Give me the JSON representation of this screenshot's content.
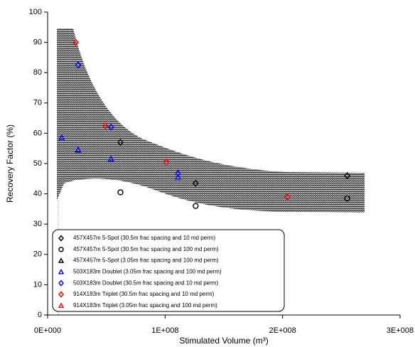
{
  "chart_data": {
    "type": "scatter",
    "x_label": "Stimulated Volume (m³)",
    "y_label": "Recovery Factor (%)",
    "xlim": [
      0,
      300000000
    ],
    "xticks": [
      {
        "value": 0,
        "label": "0E+000"
      },
      {
        "value": 100000000,
        "label": "1E+008"
      },
      {
        "value": 200000000,
        "label": "2E+008"
      },
      {
        "value": 300000000,
        "label": "3E+008"
      }
    ],
    "ylim": [
      0,
      100
    ],
    "yticks": [
      0,
      10,
      20,
      30,
      40,
      50,
      60,
      70,
      80,
      90,
      100
    ],
    "series": [
      {
        "name": "457X457m 5-Spot (30.5m frac spacing and 10 md perm)",
        "color": "#000000",
        "marker": "diamond",
        "x": [
          62000000,
          126000000,
          255000000
        ],
        "values": [
          57,
          43.5,
          46
        ]
      },
      {
        "name": "457X457m 5-Spot (30.5m frac spacing and 100 md perm)",
        "color": "#000000",
        "marker": "circle",
        "x": [
          62000000,
          126000000,
          255000000
        ],
        "values": [
          40.5,
          36,
          38.5
        ]
      },
      {
        "name": "457X457m 5-Spot (3.05m frac spacing and 100 md perm)",
        "color": "#000000",
        "marker": "triangle",
        "x": [],
        "values": []
      },
      {
        "name": "503X183m Doublet  (3.05m frac spacing and 100 md perm)",
        "color": "#0000ff",
        "marker": "triangle",
        "x": [
          12000000,
          26000000,
          54000000,
          111000000,
          111000000
        ],
        "values": [
          58.5,
          54.5,
          51.5,
          47,
          45.5
        ]
      },
      {
        "name": "503X183m Doublet  (30.5m frac spacing and 10 md perm)",
        "color": "#0000ff",
        "marker": "diamond",
        "x": [
          26000000,
          54000000
        ],
        "values": [
          82.5,
          62
        ]
      },
      {
        "name": "914X183m Triplet  (30.5m frac spacing and 10 md perm)",
        "color": "#ff0000",
        "marker": "diamond",
        "x": [
          24000000,
          49000000,
          101000000,
          204000000
        ],
        "values": [
          90,
          62.5,
          50.5,
          39
        ]
      },
      {
        "name": "914X183m Triplet  (3.05m frac spacing and 100 md perm)",
        "color": "#ff0000",
        "marker": "triangle",
        "x": [],
        "values": []
      }
    ]
  }
}
